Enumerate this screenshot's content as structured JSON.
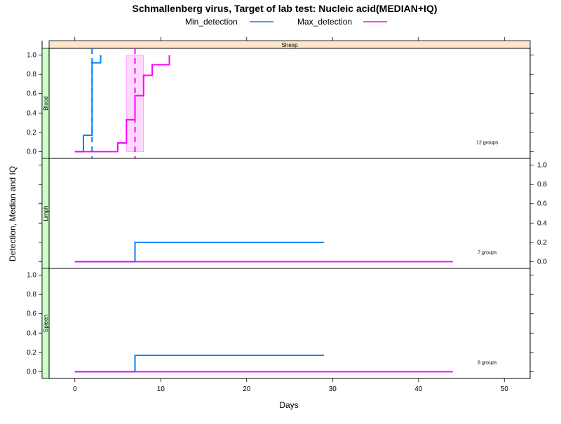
{
  "chart_data": {
    "type": "line",
    "title": "Schmallenberg virus, Target of lab test: Nucleic acid(MEDIAN+IQ)",
    "xlabel": "Days",
    "ylabel": "Detection, Median and IQ",
    "xlim": [
      -3,
      53
    ],
    "x_ticks": [
      0,
      10,
      20,
      30,
      40,
      50
    ],
    "y_ticks": [
      0.0,
      0.2,
      0.4,
      0.6,
      0.8,
      1.0
    ],
    "y_tick_labels": [
      "0.0",
      "0.2",
      "0.4",
      "0.6",
      "0.8",
      "1.0"
    ],
    "top_strip": "Sheep",
    "legend": {
      "position": "top",
      "entries": [
        {
          "label": "Min_detection",
          "color": "#0080ff"
        },
        {
          "label": "Max_detection",
          "color": "#ff00ff"
        }
      ]
    },
    "panels": [
      {
        "name": "Blood",
        "groups_label": "12 groups",
        "ylim": [
          -0.07,
          1.07
        ],
        "y_axis_side": "left",
        "series": [
          {
            "name": "Min_detection",
            "color": "#0080ff",
            "x": [
              0,
              1,
              2,
              3
            ],
            "y": [
              0.0,
              0.17,
              0.92,
              1.0
            ]
          },
          {
            "name": "Max_detection",
            "color": "#ff00ff",
            "x": [
              0,
              5,
              6,
              7,
              8,
              9,
              11
            ],
            "y": [
              0.0,
              0.09,
              0.33,
              0.58,
              0.79,
              0.9,
              1.0
            ]
          }
        ],
        "median_lines": [
          {
            "series": "Min_detection",
            "x": 2
          },
          {
            "series": "Max_detection",
            "x": 7
          }
        ],
        "iq_band": {
          "series": "Max_detection",
          "x_range": [
            6,
            8
          ]
        }
      },
      {
        "name": "Limph",
        "groups_label": "7 groups",
        "ylim": [
          -0.07,
          1.07
        ],
        "y_axis_side": "right",
        "series": [
          {
            "name": "Min_detection",
            "color": "#0080ff",
            "x": [
              0,
              7,
              29
            ],
            "y": [
              0.0,
              0.2,
              0.2
            ]
          },
          {
            "name": "Max_detection",
            "color": "#ff00ff",
            "x": [
              0,
              44
            ],
            "y": [
              0.0,
              0.0
            ]
          }
        ]
      },
      {
        "name": "Spleen",
        "groups_label": "8 groups",
        "ylim": [
          -0.07,
          1.07
        ],
        "y_axis_side": "left",
        "series": [
          {
            "name": "Min_detection",
            "color": "#0080ff",
            "x": [
              0,
              7,
              29
            ],
            "y": [
              0.0,
              0.17,
              0.17
            ]
          },
          {
            "name": "Max_detection",
            "color": "#ff00ff",
            "x": [
              0,
              44
            ],
            "y": [
              0.0,
              0.0
            ]
          }
        ]
      }
    ]
  }
}
